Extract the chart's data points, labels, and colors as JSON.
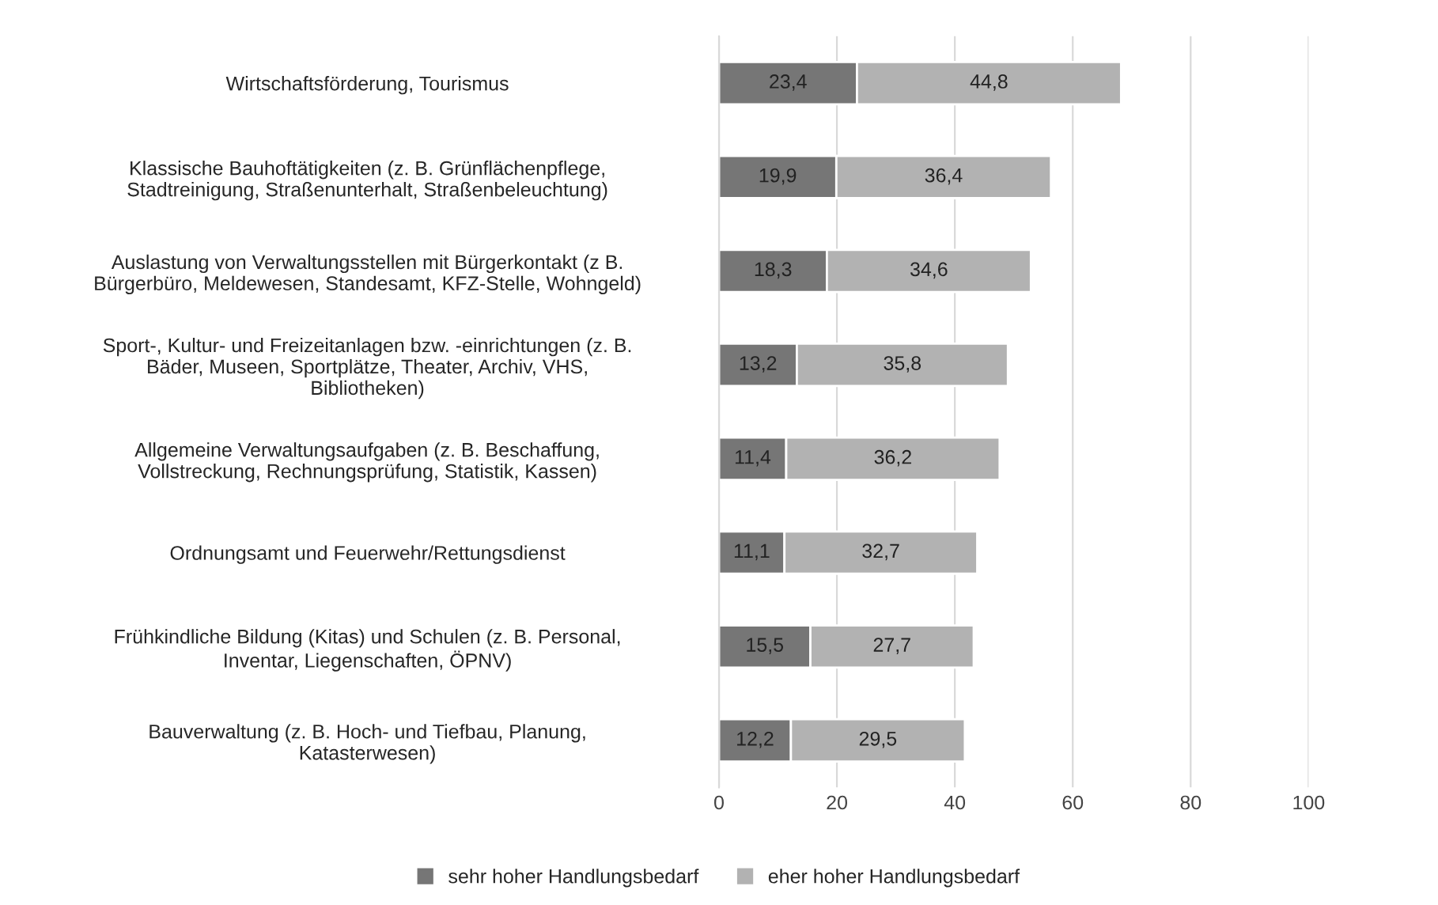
{
  "chart_data": {
    "type": "bar",
    "orientation": "horizontal",
    "stacked": true,
    "categories": [
      "Wirtschaftsförderung, Tourismus",
      "Klassische Bauhoftätigkeiten (z. B. Grünflächenpflege,\nStadtreinigung, Straßenunterhalt, Straßenbeleuchtung)",
      "Auslastung von Verwaltungsstellen mit Bürgerkontakt (z B.\nBürgerbüro, Meldewesen, Standesamt, KFZ-Stelle, Wohngeld)",
      "Sport-, Kultur- und Freizeitanlagen bzw. -einrichtungen (z. B.\nBäder, Museen, Sportplätze, Theater, Archiv, VHS,\nBibliotheken)",
      "Allgemeine Verwaltungsaufgaben (z. B. Beschaffung,\nVollstreckung, Rechnungsprüfung, Statistik, Kassen)",
      "Ordnungsamt und Feuerwehr/Rettungsdienst",
      "Frühkindliche Bildung (Kitas) und Schulen (z. B. Personal,\nInventar, Liegenschaften, ÖPNV)",
      "Bauverwaltung (z. B. Hoch- und Tiefbau, Planung,\nKatasterwesen)"
    ],
    "series": [
      {
        "name": "sehr hoher Handlungsbedarf",
        "color": "#767676",
        "values": [
          23.4,
          19.9,
          18.3,
          13.2,
          11.4,
          11.1,
          15.5,
          12.2
        ],
        "value_labels": [
          "23,4",
          "19,9",
          "18,3",
          "13,2",
          "11,4",
          "11,1",
          "15,5",
          "12,2"
        ]
      },
      {
        "name": "eher hoher Handlungsbedarf",
        "color": "#b2b2b2",
        "values": [
          44.8,
          36.4,
          34.6,
          35.8,
          36.2,
          32.7,
          27.7,
          29.5
        ],
        "value_labels": [
          "44,8",
          "36,4",
          "34,6",
          "35,8",
          "36,2",
          "32,7",
          "27,7",
          "29,5"
        ]
      }
    ],
    "xlim": [
      0,
      100
    ],
    "xticks": [
      0,
      20,
      40,
      60,
      80,
      100
    ],
    "grid": "x",
    "legend": "bottom"
  }
}
